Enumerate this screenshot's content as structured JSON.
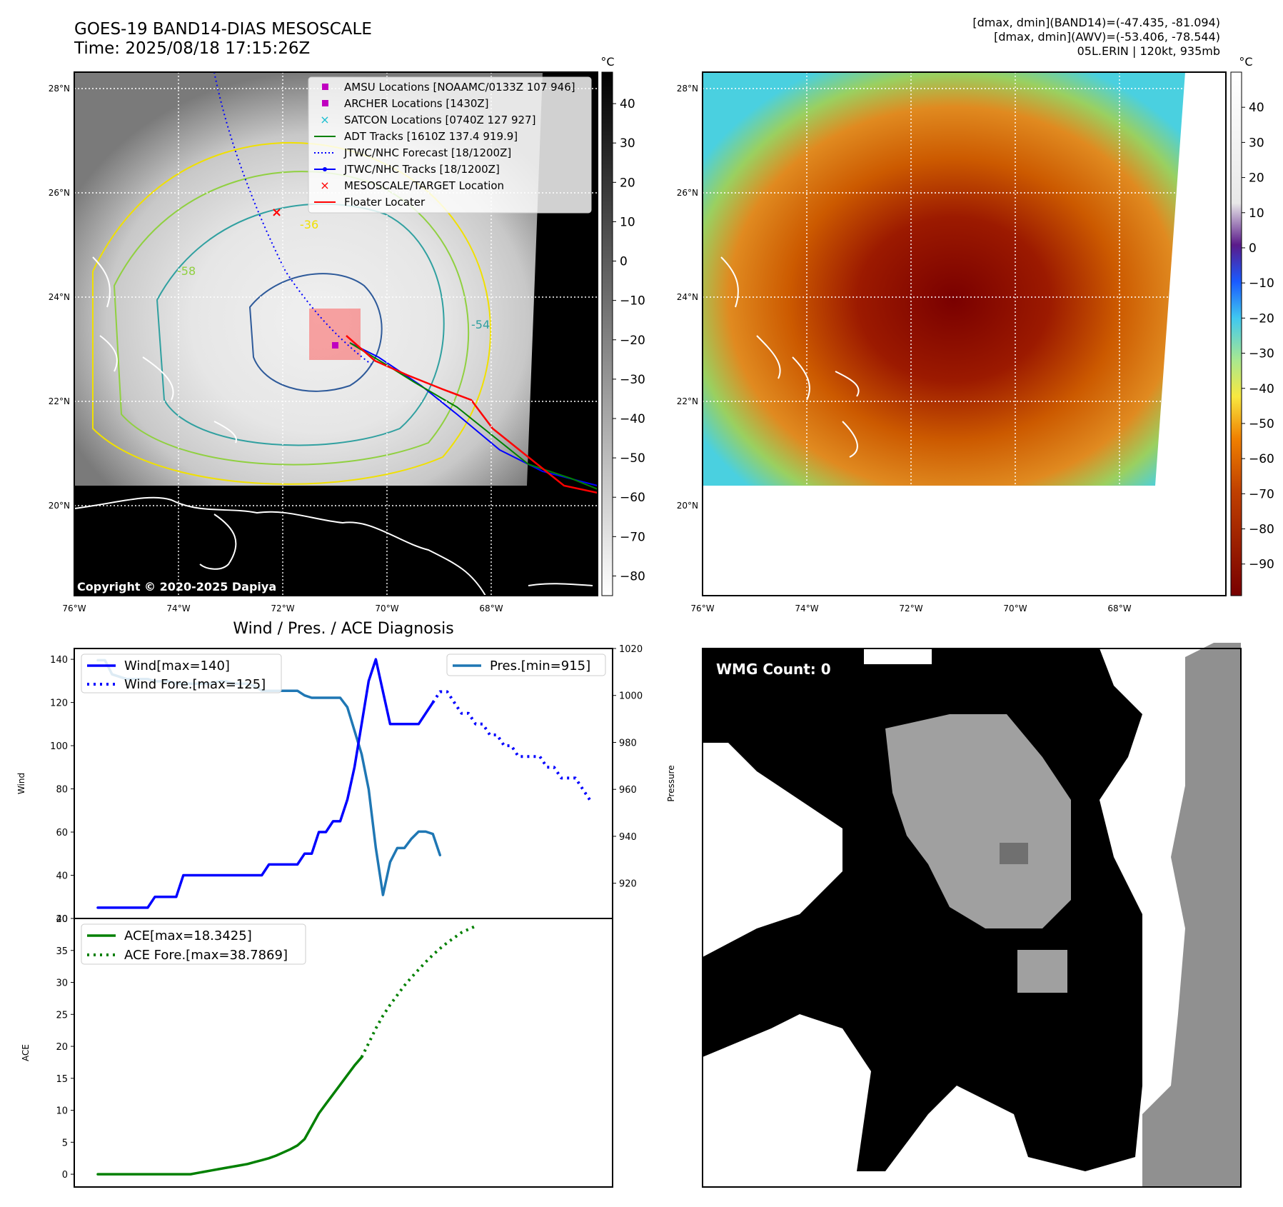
{
  "header": {
    "title": "GOES-19 BAND14-DIAS MESOSCALE",
    "time": "Time: 2025/08/18 17:15:26Z",
    "info": [
      "[dmax, dmin](BAND14)=(-47.435, -81.094)",
      "[dmax, dmin](AWV)=(-53.406, -78.544)",
      "05L.ERIN | 120kt, 935mb"
    ]
  },
  "map_panels": {
    "lat_ticks": [
      "28°N",
      "26°N",
      "24°N",
      "22°N",
      "20°N"
    ],
    "lon_ticks": [
      "76°W",
      "74°W",
      "72°W",
      "70°W",
      "68°W"
    ],
    "unit": "°C",
    "copyright": "Copyright © 2020-2025 Dapiya",
    "ir_colorbar_ticks": [
      "40",
      "30",
      "20",
      "10",
      "0",
      "−10",
      "−20",
      "−30",
      "−40",
      "−50",
      "−60",
      "−70",
      "−80"
    ],
    "awv_colorbar_ticks": [
      "40",
      "30",
      "20",
      "10",
      "0",
      "−10",
      "−20",
      "−30",
      "−40",
      "−50",
      "−60",
      "−70",
      "−80",
      "−90"
    ],
    "contour_labels": [
      "-36",
      "-58",
      "-54"
    ],
    "legend": [
      {
        "label": "AMSU Locations [NOAAMC/0133Z 107 946]",
        "color": "#c000c0",
        "marker": "square"
      },
      {
        "label": "ARCHER Locations [1430Z]",
        "color": "#c000c0",
        "marker": "square"
      },
      {
        "label": "SATCON Locations [0740Z 127 927]",
        "color": "#17becf",
        "marker": "x"
      },
      {
        "label": "ADT Tracks [1610Z 137.4 919.9]",
        "color": "#008000",
        "marker": "line"
      },
      {
        "label": "JTWC/NHC Forecast [18/1200Z]",
        "color": "#0000ff",
        "marker": "dotted"
      },
      {
        "label": "JTWC/NHC Tracks [18/1200Z]",
        "color": "#0000ff",
        "marker": "line-dot"
      },
      {
        "label": "MESOSCALE/TARGET Location",
        "color": "#ff0000",
        "marker": "x"
      },
      {
        "label": "Floater Locater",
        "color": "#ff0000",
        "marker": "line"
      }
    ]
  },
  "wmg": {
    "label": "WMG Count: 0"
  },
  "chart_data": [
    {
      "type": "line",
      "title": "Wind / Pres. / ACE Diagnosis",
      "ylabel": "Wind",
      "ylim": [
        20,
        145
      ],
      "y_ticks": [
        "140",
        "120",
        "100",
        "80",
        "60",
        "40",
        "20"
      ],
      "series": [
        {
          "name": "Wind[max=140]",
          "color": "#0000ff",
          "style": "solid",
          "values": [
            25,
            25,
            25,
            25,
            25,
            25,
            25,
            25,
            30,
            30,
            30,
            30,
            40,
            40,
            40,
            40,
            40,
            40,
            40,
            40,
            40,
            40,
            40,
            40,
            45,
            45,
            45,
            45,
            45,
            50,
            50,
            60,
            60,
            65,
            65,
            75,
            90,
            110,
            130,
            140,
            125,
            110,
            110,
            110,
            110,
            110,
            115,
            120
          ]
        },
        {
          "name": "Wind Fore.[max=125]",
          "color": "#0000ff",
          "style": "dotted",
          "values": [
            null,
            null,
            null,
            null,
            null,
            null,
            null,
            null,
            null,
            null,
            null,
            null,
            null,
            null,
            null,
            null,
            null,
            null,
            null,
            null,
            null,
            null,
            null,
            null,
            null,
            null,
            null,
            null,
            null,
            null,
            null,
            null,
            null,
            null,
            null,
            null,
            null,
            null,
            null,
            null,
            null,
            null,
            null,
            null,
            null,
            null,
            null,
            120,
            125,
            125,
            120,
            115,
            115,
            110,
            110,
            105,
            105,
            100,
            100,
            95,
            95,
            95,
            95,
            90,
            90,
            85,
            85,
            85,
            80,
            75
          ]
        }
      ]
    },
    {
      "type": "line",
      "ylabel": "Pressure",
      "ylim": [
        905,
        1020
      ],
      "y_ticks": [
        "1020",
        "1000",
        "980",
        "960",
        "940",
        "920"
      ],
      "series": [
        {
          "name": "Pres.[min=915]",
          "color": "#1f77b4",
          "style": "solid",
          "values": [
            1015,
            1015,
            1009,
            1008,
            1007,
            1007,
            1007,
            1007,
            1006,
            1006,
            1006,
            1005,
            1005,
            1005,
            1005,
            1005,
            1005,
            1006,
            1006,
            1005,
            1005,
            1005,
            1004,
            1002,
            1002,
            1002,
            1002,
            1002,
            1002,
            1000,
            999,
            999,
            999,
            999,
            999,
            995,
            985,
            975,
            960,
            935,
            915,
            929,
            935,
            935,
            939,
            942,
            942,
            941,
            932
          ]
        }
      ]
    },
    {
      "type": "line",
      "ylabel": "ACE",
      "ylim": [
        -2,
        40
      ],
      "y_ticks": [
        "40",
        "35",
        "30",
        "25",
        "20",
        "15",
        "10",
        "5",
        "0"
      ],
      "series": [
        {
          "name": "ACE[max=18.3425]",
          "color": "#008000",
          "style": "solid",
          "values": [
            0,
            0,
            0,
            0,
            0,
            0,
            0,
            0,
            0,
            0,
            0,
            0,
            0,
            0,
            0.2,
            0.4,
            0.6,
            0.8,
            1.0,
            1.2,
            1.4,
            1.6,
            1.9,
            2.2,
            2.5,
            2.9,
            3.4,
            3.9,
            4.5,
            5.5,
            7.5,
            9.5,
            11,
            12.5,
            14,
            15.5,
            17,
            18.3
          ]
        },
        {
          "name": "ACE Fore.[max=38.7869]",
          "color": "#008000",
          "style": "dotted",
          "values": [
            null,
            null,
            null,
            null,
            null,
            null,
            null,
            null,
            null,
            null,
            null,
            null,
            null,
            null,
            null,
            null,
            null,
            null,
            null,
            null,
            null,
            null,
            null,
            null,
            null,
            null,
            null,
            null,
            null,
            null,
            null,
            null,
            null,
            null,
            null,
            null,
            null,
            18.3,
            20.5,
            22.8,
            24.8,
            26.5,
            28.0,
            29.5,
            30.8,
            32.0,
            33.2,
            34.3,
            35.3,
            36.2,
            37.0,
            37.8,
            38.3,
            38.8
          ]
        }
      ]
    }
  ]
}
